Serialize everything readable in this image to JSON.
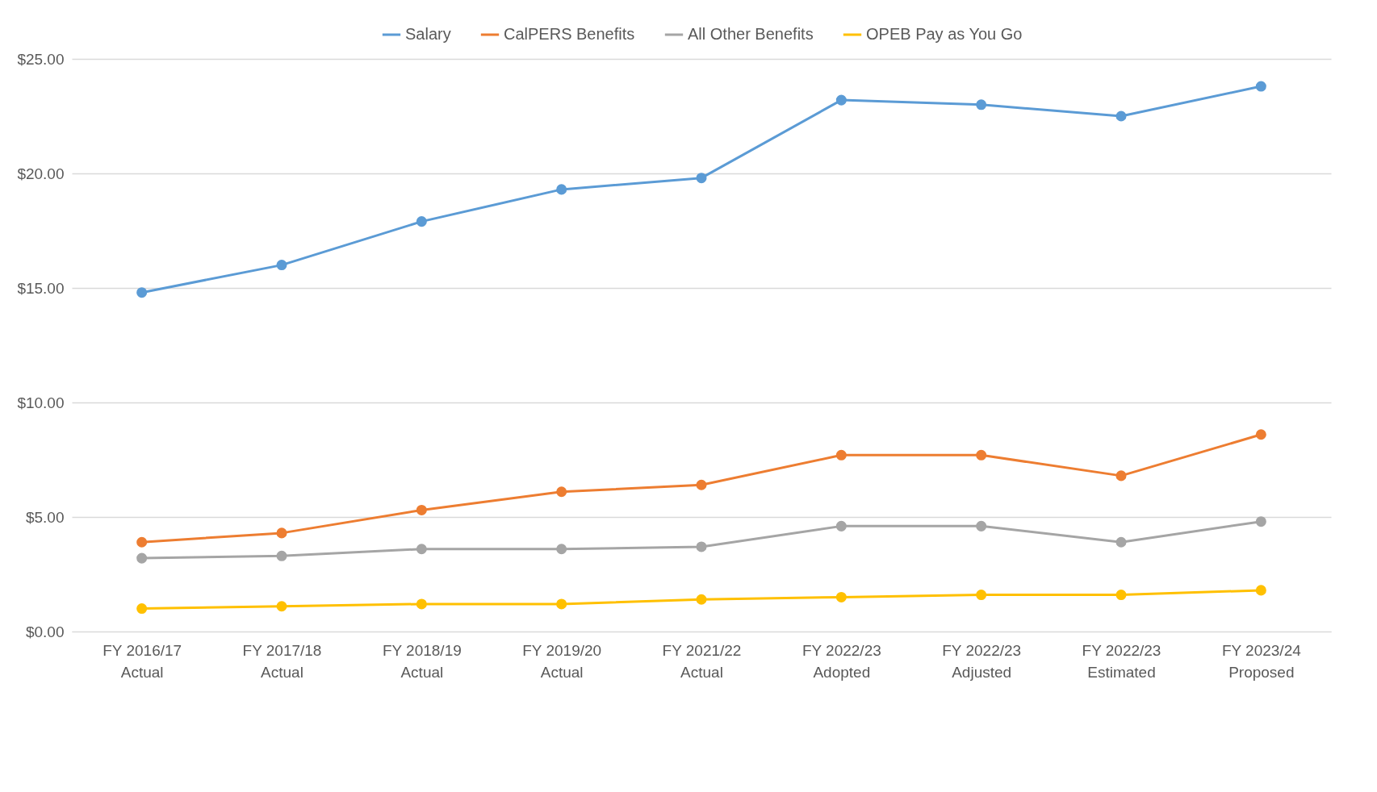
{
  "chart_data": {
    "type": "line",
    "categories": [
      "FY 2016/17\nActual",
      "FY 2017/18\nActual",
      "FY 2018/19\nActual",
      "FY 2019/20\nActual",
      "FY 2021/22\nActual",
      "FY 2022/23\nAdopted",
      "FY 2022/23\nAdjusted",
      "FY 2022/23\nEstimated",
      "FY 2023/24\nProposed"
    ],
    "series": [
      {
        "name": "Salary",
        "color": "#5b9bd5",
        "values": [
          14.8,
          16.0,
          17.9,
          19.3,
          19.8,
          23.2,
          23.0,
          22.5,
          23.8
        ]
      },
      {
        "name": "CalPERS Benefits",
        "color": "#ed7d31",
        "values": [
          3.9,
          4.3,
          5.3,
          6.1,
          6.4,
          7.7,
          7.7,
          6.8,
          8.6
        ]
      },
      {
        "name": "All Other Benefits",
        "color": "#a5a5a5",
        "values": [
          3.2,
          3.3,
          3.6,
          3.6,
          3.7,
          4.6,
          4.6,
          3.9,
          4.8
        ]
      },
      {
        "name": "OPEB Pay as You Go",
        "color": "#ffc000",
        "values": [
          1.0,
          1.1,
          1.2,
          1.2,
          1.4,
          1.5,
          1.6,
          1.6,
          1.8
        ]
      }
    ],
    "ylim": [
      0,
      25
    ],
    "yticks": [
      {
        "value": 0,
        "label": "$0.00"
      },
      {
        "value": 5,
        "label": "$5.00"
      },
      {
        "value": 10,
        "label": "$10.00"
      },
      {
        "value": 15,
        "label": "$15.00"
      },
      {
        "value": 20,
        "label": "$20.00"
      },
      {
        "value": 25,
        "label": "$25.00"
      }
    ],
    "grid": "y",
    "legend": "top",
    "marker": "circle",
    "line_style": "solid"
  }
}
